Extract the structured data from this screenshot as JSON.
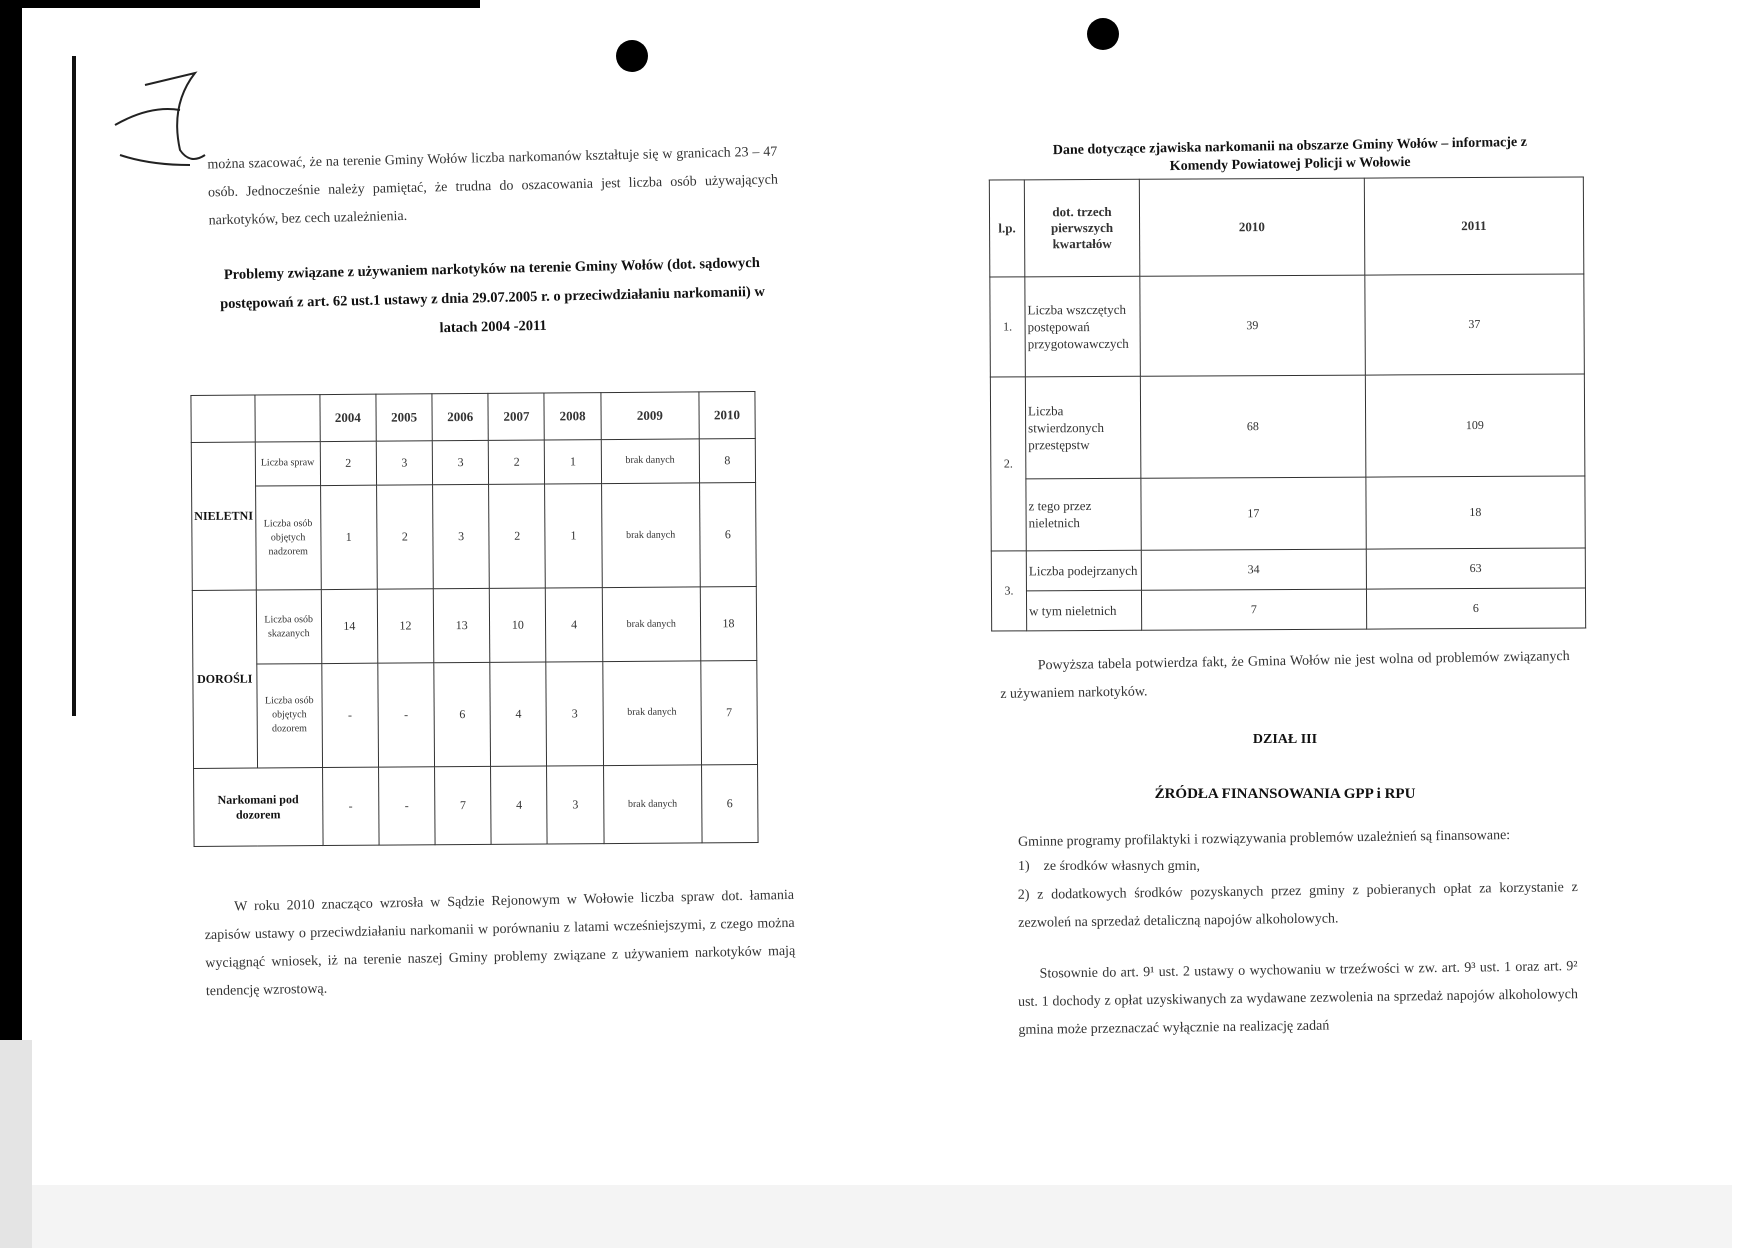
{
  "left": {
    "intro": "można szacować, że na terenie Gminy Wołów liczba narkomanów kształtuje się w granicach 23 – 47 osób. Jednocześnie należy pamiętać, że trudna do oszacowania jest liczba osób używających narkotyków, bez cech uzależnienia.",
    "table_title": "Problemy związane z używaniem narkotyków na terenie Gminy Wołów (dot. sądowych postępowań z art. 62 ust.1 ustawy z dnia 29.07.2005 r. o przeciwdziałaniu narkomanii) w latach 2004 -2011",
    "years": [
      "2004",
      "2005",
      "2006",
      "2007",
      "2008",
      "2009",
      "2010"
    ],
    "groups": [
      {
        "label": "NIELETNI",
        "rows": [
          {
            "label": "Liczba spraw",
            "values": [
              "2",
              "3",
              "3",
              "2",
              "1",
              "brak danych",
              "8"
            ]
          },
          {
            "label": "Liczba osób objętych nadzorem",
            "values": [
              "1",
              "2",
              "3",
              "2",
              "1",
              "brak danych",
              "6"
            ]
          }
        ]
      },
      {
        "label": "DOROŚLI",
        "rows": [
          {
            "label": "Liczba osób skazanych",
            "values": [
              "14",
              "12",
              "13",
              "10",
              "4",
              "brak danych",
              "18"
            ]
          },
          {
            "label": "Liczba osób objętych dozorem",
            "values": [
              "-",
              "-",
              "6",
              "4",
              "3",
              "brak danych",
              "7"
            ]
          }
        ]
      }
    ],
    "last_row": {
      "label": "Narkomani pod dozorem",
      "values": [
        "-",
        "-",
        "7",
        "4",
        "3",
        "brak danych",
        "6"
      ]
    },
    "conclusion": "W roku 2010 znacząco wzrosła w Sądzie Rejonowym w Wołowie liczba spraw dot. łamania zapisów ustawy o przeciwdziałaniu narkomanii w porównaniu z latami wcześniejszymi, z czego można wyciągnąć wniosek, iż na terenie naszej Gminy problemy związane z używaniem narkotyków mają tendencję wzrostową."
  },
  "right": {
    "table_title": "Dane dotyczące zjawiska narkomanii na obszarze Gminy Wołów – informacje z Komendy Powiatowej Policji w Wołowie",
    "headers": [
      "l.p.",
      "dot. trzech pierwszych kwartałów",
      "2010",
      "2011"
    ],
    "rows": [
      {
        "lp": "1.",
        "label": "Liczba wszczętych postępowań przygotowawczych",
        "v2010": "39",
        "v2011": "37"
      },
      {
        "lp": "2.",
        "label": "Liczba stwierdzonych przestępstw",
        "v2010": "68",
        "v2011": "109"
      },
      {
        "lp": "",
        "label": "z tego przez nieletnich",
        "v2010": "17",
        "v2011": "18"
      },
      {
        "lp": "3.",
        "label": "Liczba podejrzanych",
        "v2010": "34",
        "v2011": "63"
      },
      {
        "lp": "",
        "label": "w tym nieletnich",
        "v2010": "7",
        "v2011": "6"
      }
    ],
    "after_table": "Powyższa tabela potwierdza fakt, że Gmina Wołów nie jest wolna od problemów związanych z używaniem narkotyków.",
    "section": "DZIAŁ III",
    "section_title": "ŹRÓDŁA FINANSOWANIA GPP i RPU",
    "financing_intro": "Gminne programy profilaktyki i rozwiązywania problemów uzależnień są finansowane:",
    "item1": "1)    ze środków własnych gmin,",
    "item2": "2)    z dodatkowych środków pozyskanych przez gminy z pobieranych opłat za korzystanie z zezwoleń na sprzedaż detaliczną napojów alkoholowych.",
    "para": "Stosownie do art. 9¹ ust. 2 ustawy o wychowaniu w trzeźwości w zw. art. 9³ ust. 1 oraz art. 9² ust. 1 dochody z opłat uzyskiwanych za wydawane zezwolenia na sprzedaż napojów alkoholowych gmina może przeznaczać wyłącznie na realizację zadań"
  }
}
